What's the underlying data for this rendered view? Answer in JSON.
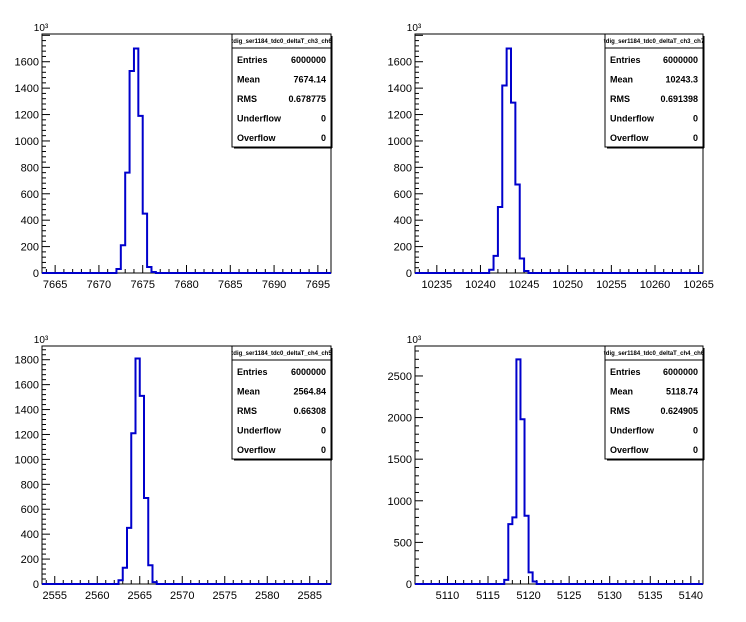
{
  "chart_data": [
    {
      "type": "bar",
      "title": "",
      "xlabel": "",
      "ylabel": "",
      "y_exponent": "10³",
      "xlim": [
        7663.5,
        7696.5
      ],
      "ylim": [
        0,
        1810
      ],
      "x_ticks": [
        "7665",
        "7670",
        "7675",
        "7680",
        "7685",
        "7690",
        "7695"
      ],
      "y_ticks": [
        "0",
        "200",
        "400",
        "600",
        "800",
        "1000",
        "1200",
        "1400",
        "1600"
      ],
      "x": [
        7672,
        7672.5,
        7673,
        7673.5,
        7674,
        7674.5,
        7675,
        7675.5,
        7676,
        7676.5
      ],
      "values": [
        30,
        210,
        760,
        1530,
        1700,
        1190,
        450,
        45,
        8,
        0
      ],
      "stats": {
        "name": "tdig_ser1184_tdc0_deltaT_ch3_ch6",
        "rows": [
          {
            "label": "Entries",
            "value": "6000000"
          },
          {
            "label": "Mean",
            "value": "7674.14"
          },
          {
            "label": "RMS",
            "value": "0.678775"
          },
          {
            "label": "Underflow",
            "value": "0"
          },
          {
            "label": "Overflow",
            "value": "0"
          }
        ]
      }
    },
    {
      "type": "bar",
      "title": "",
      "xlabel": "",
      "ylabel": "",
      "y_exponent": "10³",
      "xlim": [
        10232.5,
        10265.5
      ],
      "ylim": [
        0,
        1810
      ],
      "x_ticks": [
        "10235",
        "10240",
        "10245",
        "10250",
        "10255",
        "10260",
        "10265"
      ],
      "y_ticks": [
        "0",
        "200",
        "400",
        "600",
        "800",
        "1000",
        "1200",
        "1400",
        "1600"
      ],
      "x": [
        10241,
        10241.5,
        10242,
        10242.5,
        10243,
        10243.5,
        10244,
        10244.5,
        10245,
        10245.5
      ],
      "values": [
        25,
        130,
        500,
        1420,
        1700,
        1290,
        670,
        110,
        15,
        0
      ],
      "stats": {
        "name": "tdig_ser1184_tdc0_deltaT_ch3_ch7",
        "rows": [
          {
            "label": "Entries",
            "value": "6000000"
          },
          {
            "label": "Mean",
            "value": "10243.3"
          },
          {
            "label": "RMS",
            "value": "0.691398"
          },
          {
            "label": "Underflow",
            "value": "0"
          },
          {
            "label": "Overflow",
            "value": "0"
          }
        ]
      }
    },
    {
      "type": "bar",
      "title": "",
      "xlabel": "",
      "ylabel": "",
      "y_exponent": "10³",
      "xlim": [
        2553.5,
        2587.5
      ],
      "ylim": [
        0,
        1910
      ],
      "x_ticks": [
        "2555",
        "2560",
        "2565",
        "2570",
        "2575",
        "2580",
        "2585"
      ],
      "y_ticks": [
        "0",
        "200",
        "400",
        "600",
        "800",
        "1000",
        "1200",
        "1400",
        "1600",
        "1800"
      ],
      "x": [
        2562.5,
        2563,
        2563.5,
        2564,
        2564.5,
        2565,
        2565.5,
        2566,
        2566.5,
        2567
      ],
      "values": [
        30,
        130,
        450,
        1210,
        1810,
        1510,
        690,
        150,
        15,
        0
      ],
      "stats": {
        "name": "tdig_ser1184_tdc0_deltaT_ch4_ch5",
        "rows": [
          {
            "label": "Entries",
            "value": "6000000"
          },
          {
            "label": "Mean",
            "value": "2564.84"
          },
          {
            "label": "RMS",
            "value": "0.66308"
          },
          {
            "label": "Underflow",
            "value": "0"
          },
          {
            "label": "Overflow",
            "value": "0"
          }
        ]
      }
    },
    {
      "type": "bar",
      "title": "",
      "xlabel": "",
      "ylabel": "",
      "y_exponent": "10³",
      "xlim": [
        5106,
        5141.5
      ],
      "ylim": [
        0,
        2860
      ],
      "x_ticks": [
        "5110",
        "5115",
        "5120",
        "5125",
        "5130",
        "5135",
        "5140"
      ],
      "y_ticks": [
        "0",
        "500",
        "1000",
        "1500",
        "2000",
        "2500"
      ],
      "x": [
        5117,
        5117.5,
        5118,
        5118.5,
        5119,
        5119.5,
        5120,
        5120.5,
        5121
      ],
      "values": [
        50,
        720,
        800,
        2700,
        1980,
        820,
        140,
        30,
        0
      ],
      "stats": {
        "name": "tdig_ser1184_tdc0_deltaT_ch4_ch6",
        "rows": [
          {
            "label": "Entries",
            "value": "6000000"
          },
          {
            "label": "Mean",
            "value": "5118.74"
          },
          {
            "label": "RMS",
            "value": "0.624905"
          },
          {
            "label": "Underflow",
            "value": "0"
          },
          {
            "label": "Overflow",
            "value": "0"
          }
        ]
      }
    }
  ],
  "colors": {
    "histogram_line": "#0000cc",
    "frame": "#000000",
    "background": "#ffffff"
  }
}
